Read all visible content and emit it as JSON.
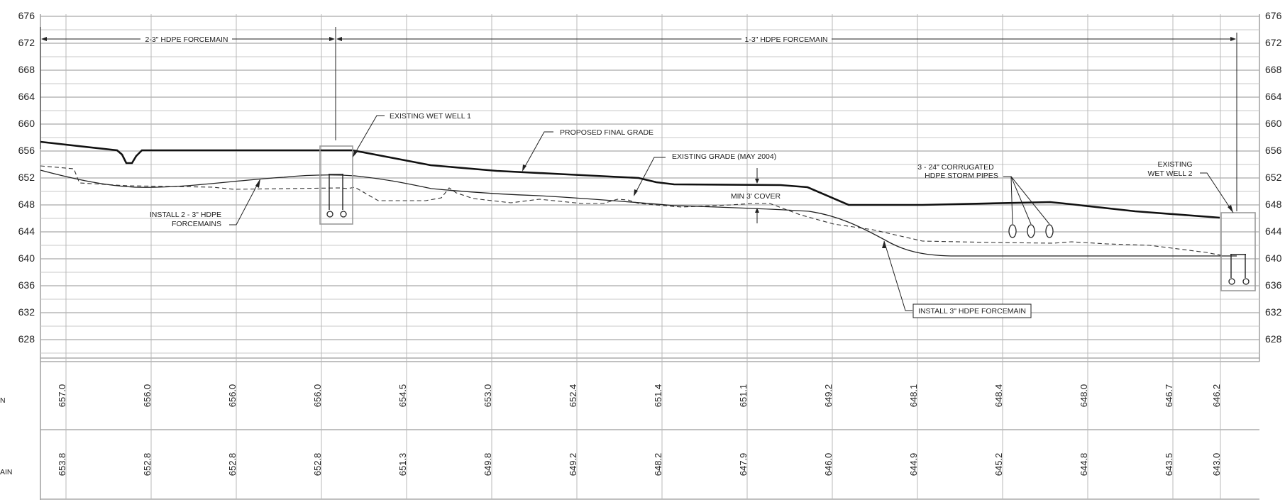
{
  "elevation_axis": {
    "labels": [
      "676",
      "672",
      "668",
      "664",
      "660",
      "656",
      "652",
      "648",
      "644",
      "640",
      "636",
      "632",
      "628"
    ]
  },
  "forcemain_dims": {
    "left": "2-3\" HDPE FORCEMAIN",
    "right": "1-3\" HDPE FORCEMAIN"
  },
  "callouts": {
    "wet_well_1": "EXISTING WET WELL 1",
    "proposed_grade": "PROPOSED FINAL GRADE",
    "existing_grade": "EXISTING GRADE (MAY 2004)",
    "install_2_line1": "INSTALL 2 - 3\" HDPE",
    "install_2_line2": "FORCEMAINS",
    "min_cover": "MIN 3' COVER",
    "storm_line1": "3 - 24\" CORRUGATED",
    "storm_line2": "HDPE STORM PIPES",
    "wet_well_2_line1": "EXISTING",
    "wet_well_2_line2": "WET WELL 2",
    "install_3": "INSTALL 3\" HDPE FORCEMAIN"
  },
  "table": {
    "row1_label_fragment": "N",
    "row2_label_fragment": "AIN",
    "row1_values": [
      "657.0",
      "656.0",
      "656.0",
      "656.0",
      "654.5",
      "653.0",
      "652.4",
      "651.4",
      "651.1",
      "649.2",
      "648.1",
      "648.4",
      "648.0",
      "646.7",
      "646.2"
    ],
    "row2_values": [
      "653.8",
      "652.8",
      "652.8",
      "652.8",
      "651.3",
      "649.8",
      "649.2",
      "648.2",
      "647.9",
      "646.0",
      "644.9",
      "645.2",
      "644.8",
      "643.5",
      "643.0"
    ]
  }
}
